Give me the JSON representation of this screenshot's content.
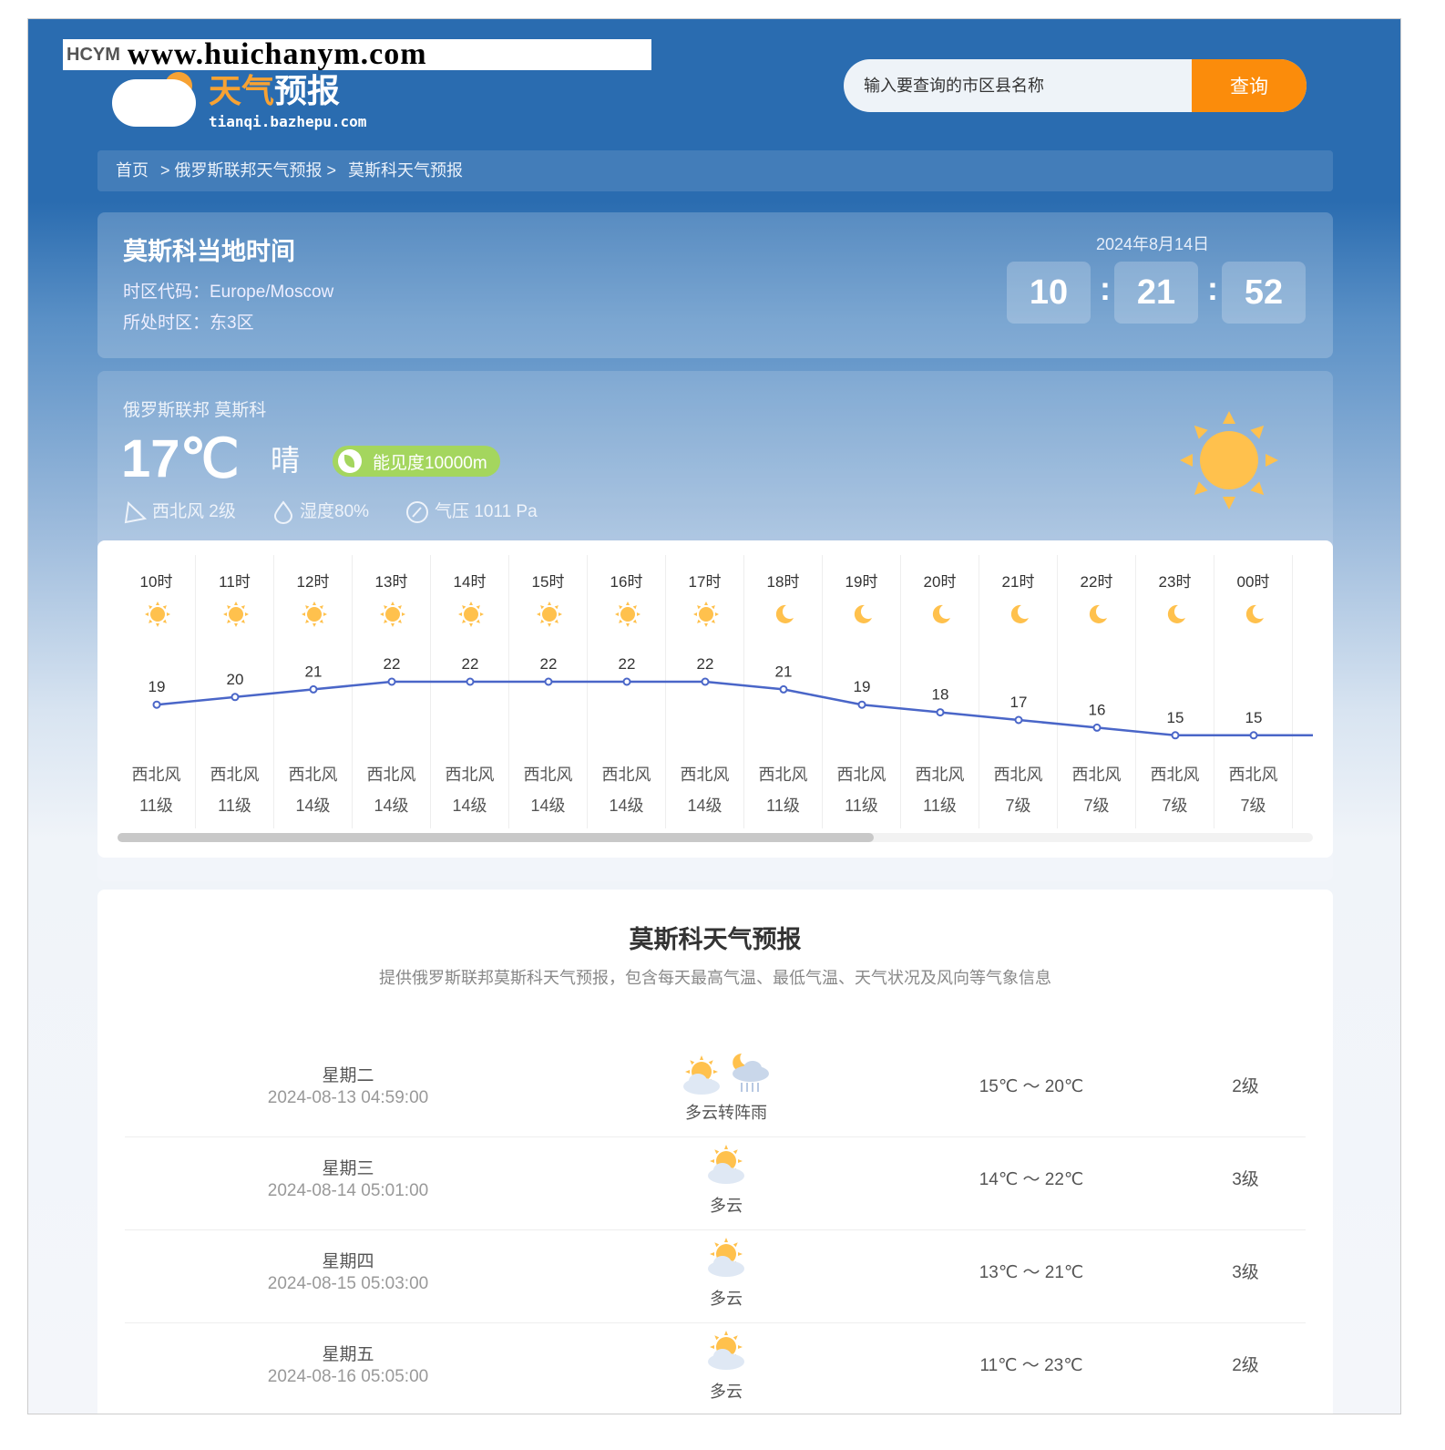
{
  "watermark": {
    "brand": "HCYM",
    "url": "www.huichanym.com"
  },
  "logo": {
    "title_a": "天气",
    "title_b": "预报",
    "subtitle": "tianqi.bazhepu.com"
  },
  "search": {
    "placeholder": "输入要查询的市区县名称",
    "button": "查询"
  },
  "breadcrumb": [
    "首页",
    "> 俄罗斯联邦天气预报 >",
    "莫斯科天气预报"
  ],
  "local_time": {
    "title": "莫斯科当地时间",
    "tz_code": "时区代码：Europe/Moscow",
    "tz_zone": "所处时区：东3区",
    "date": "2024年8月14日",
    "hh": "10",
    "mm": "21",
    "ss": "52",
    "sep": ":"
  },
  "now": {
    "location": "俄罗斯联邦 莫斯科",
    "temp": "17℃",
    "condition": "晴",
    "visibility": "能见度10000m",
    "wind": "西北风 2级",
    "humidity": "湿度80%",
    "pressure": "气压 1011 Pa",
    "icon": "sun-icon"
  },
  "hourly": [
    {
      "hour": "10时",
      "icon": "sun",
      "temp": 19,
      "wind": "西北风",
      "level": "11级"
    },
    {
      "hour": "11时",
      "icon": "sun",
      "temp": 20,
      "wind": "西北风",
      "level": "11级"
    },
    {
      "hour": "12时",
      "icon": "sun",
      "temp": 21,
      "wind": "西北风",
      "level": "14级"
    },
    {
      "hour": "13时",
      "icon": "sun",
      "temp": 22,
      "wind": "西北风",
      "level": "14级"
    },
    {
      "hour": "14时",
      "icon": "sun",
      "temp": 22,
      "wind": "西北风",
      "level": "14级"
    },
    {
      "hour": "15时",
      "icon": "sun",
      "temp": 22,
      "wind": "西北风",
      "level": "14级"
    },
    {
      "hour": "16时",
      "icon": "sun",
      "temp": 22,
      "wind": "西北风",
      "level": "14级"
    },
    {
      "hour": "17时",
      "icon": "sun",
      "temp": 22,
      "wind": "西北风",
      "level": "14级"
    },
    {
      "hour": "18时",
      "icon": "moon",
      "temp": 21,
      "wind": "西北风",
      "level": "11级"
    },
    {
      "hour": "19时",
      "icon": "moon",
      "temp": 19,
      "wind": "西北风",
      "level": "11级"
    },
    {
      "hour": "20时",
      "icon": "moon",
      "temp": 18,
      "wind": "西北风",
      "level": "11级"
    },
    {
      "hour": "21时",
      "icon": "moon",
      "temp": 17,
      "wind": "西北风",
      "level": "7级"
    },
    {
      "hour": "22时",
      "icon": "moon",
      "temp": 16,
      "wind": "西北风",
      "level": "7级"
    },
    {
      "hour": "23时",
      "icon": "moon",
      "temp": 15,
      "wind": "西北风",
      "level": "7级"
    },
    {
      "hour": "00时",
      "icon": "moon",
      "temp": 15,
      "wind": "西北风",
      "level": "7级"
    }
  ],
  "hourly_scroll_position": 0,
  "daily": {
    "title": "莫斯科天气预报",
    "subtitle": "提供俄罗斯联邦莫斯科天气预报，包含每天最高气温、最低气温、天气状况及风向等气象信息",
    "rows": [
      {
        "weekday": "星期二",
        "datetime": "2024-08-13 04:59:00",
        "icons": [
          "partly-cloudy",
          "night-shower"
        ],
        "condition": "多云转阵雨",
        "temp": "15℃ ～ 20℃",
        "wind": "2级"
      },
      {
        "weekday": "星期三",
        "datetime": "2024-08-14 05:01:00",
        "icons": [
          "partly-cloudy"
        ],
        "condition": "多云",
        "temp": "14℃ ～ 22℃",
        "wind": "3级"
      },
      {
        "weekday": "星期四",
        "datetime": "2024-08-15 05:03:00",
        "icons": [
          "partly-cloudy"
        ],
        "condition": "多云",
        "temp": "13℃ ～ 21℃",
        "wind": "3级"
      },
      {
        "weekday": "星期五",
        "datetime": "2024-08-16 05:05:00",
        "icons": [
          "partly-cloudy"
        ],
        "condition": "多云",
        "temp": "11℃ ～ 23℃",
        "wind": "2级"
      }
    ]
  },
  "colors": {
    "header": "#2a6cb0",
    "accent": "#fb8c0b",
    "visibility": "#a4d65e",
    "line": "#4a66c8",
    "sun": "#ffc14d"
  }
}
